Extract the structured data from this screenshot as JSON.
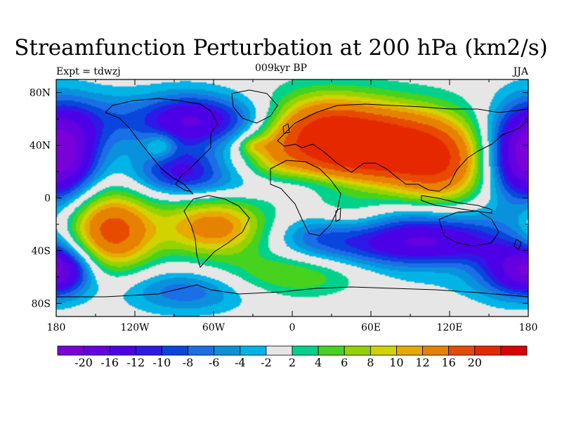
{
  "title": "Streamfunction Perturbation at 200 hPa (km2/s)",
  "left_label": "Expt = tdwzj",
  "center_label": "009kyr BP",
  "right_label": "JJA",
  "map": {
    "projection": "cylindrical equidistant",
    "lon_range": [
      -180,
      180
    ],
    "lat_range": [
      -90,
      90
    ],
    "background_color": "#e8e8e8",
    "y_ticks": [
      {
        "value": 80,
        "label": "80N"
      },
      {
        "value": 40,
        "label": "40N"
      },
      {
        "value": 0,
        "label": "0"
      },
      {
        "value": -40,
        "label": "40S"
      },
      {
        "value": -80,
        "label": "80S"
      }
    ],
    "x_ticks": [
      {
        "value": -180,
        "label": "180"
      },
      {
        "value": -120,
        "label": "120W"
      },
      {
        "value": -60,
        "label": "60W"
      },
      {
        "value": 0,
        "label": "0"
      },
      {
        "value": 60,
        "label": "60E"
      },
      {
        "value": 120,
        "label": "120E"
      },
      {
        "value": 180,
        "label": "180"
      }
    ],
    "field_centers": [
      {
        "lon": 70,
        "lat": 38,
        "value": 24,
        "spread_lon": 45,
        "spread_lat": 22
      },
      {
        "lon": 20,
        "lat": 50,
        "value": 14,
        "spread_lon": 30,
        "spread_lat": 20
      },
      {
        "lon": 115,
        "lat": 20,
        "value": 10,
        "spread_lon": 25,
        "spread_lat": 22
      },
      {
        "lon": -60,
        "lat": -22,
        "value": 14,
        "spread_lon": 28,
        "spread_lat": 15
      },
      {
        "lon": -135,
        "lat": -28,
        "value": 14,
        "spread_lon": 22,
        "spread_lat": 20
      },
      {
        "lon": -150,
        "lat": -15,
        "value": 6,
        "spread_lon": 25,
        "spread_lat": 20
      },
      {
        "lon": 0,
        "lat": -58,
        "value": 7,
        "spread_lon": 45,
        "spread_lat": 12
      },
      {
        "lon": 110,
        "lat": -52,
        "value": 5,
        "spread_lon": 35,
        "spread_lat": 10
      },
      {
        "lon": -15,
        "lat": 30,
        "value": 4,
        "spread_lon": 15,
        "spread_lat": 15
      },
      {
        "lon": 45,
        "lat": -15,
        "value": 4,
        "spread_lon": 22,
        "spread_lat": 10
      },
      {
        "lon": 175,
        "lat": 35,
        "value": -14,
        "spread_lon": 22,
        "spread_lat": 25
      },
      {
        "lon": -175,
        "lat": 30,
        "value": -12,
        "spread_lon": 20,
        "spread_lat": 25
      },
      {
        "lon": -80,
        "lat": 58,
        "value": -14,
        "spread_lon": 25,
        "spread_lat": 15
      },
      {
        "lon": -85,
        "lat": 20,
        "value": -12,
        "spread_lon": 25,
        "spread_lat": 12
      },
      {
        "lon": -140,
        "lat": 60,
        "value": -6,
        "spread_lon": 30,
        "spread_lat": 15
      },
      {
        "lon": 100,
        "lat": -35,
        "value": -18,
        "spread_lon": 45,
        "spread_lat": 18
      },
      {
        "lon": 170,
        "lat": -55,
        "value": -12,
        "spread_lon": 22,
        "spread_lat": 15
      },
      {
        "lon": -175,
        "lat": -55,
        "value": -10,
        "spread_lon": 15,
        "spread_lat": 12
      },
      {
        "lon": -80,
        "lat": -70,
        "value": -8,
        "spread_lon": 35,
        "spread_lat": 12
      },
      {
        "lon": 20,
        "lat": -30,
        "value": -6,
        "spread_lon": 25,
        "spread_lat": 12
      },
      {
        "lon": 0,
        "lat": 10,
        "value": -4,
        "spread_lon": 50,
        "spread_lat": 8
      },
      {
        "lon": -40,
        "lat": 60,
        "value": -6,
        "spread_lon": 25,
        "spread_lat": 12
      },
      {
        "lon": -100,
        "lat": 40,
        "value": 6,
        "spread_lon": 8,
        "spread_lat": 7
      },
      {
        "lon": -30,
        "lat": 40,
        "value": 5,
        "spread_lon": 8,
        "spread_lat": 5
      }
    ]
  },
  "colorbar": {
    "colors": [
      "#7a00d9",
      "#6600e0",
      "#4d00e6",
      "#2d1ae6",
      "#0a46dc",
      "#1a6ee6",
      "#0a91dc",
      "#00b4e6",
      "#e6e6e6",
      "#00d28c",
      "#46d21e",
      "#96d200",
      "#d2d200",
      "#e6aa00",
      "#e68200",
      "#e64b00",
      "#e62800",
      "#dc0000"
    ],
    "labels": [
      "-20",
      "-16",
      "-12",
      "-10",
      "-8",
      "-6",
      "-4",
      "-2",
      "2",
      "4",
      "6",
      "8",
      "10",
      "12",
      "16",
      "20"
    ],
    "levels": [
      -20,
      -16,
      -12,
      -10,
      -8,
      -6,
      -4,
      -2,
      2,
      4,
      6,
      8,
      10,
      12,
      16,
      20
    ]
  }
}
